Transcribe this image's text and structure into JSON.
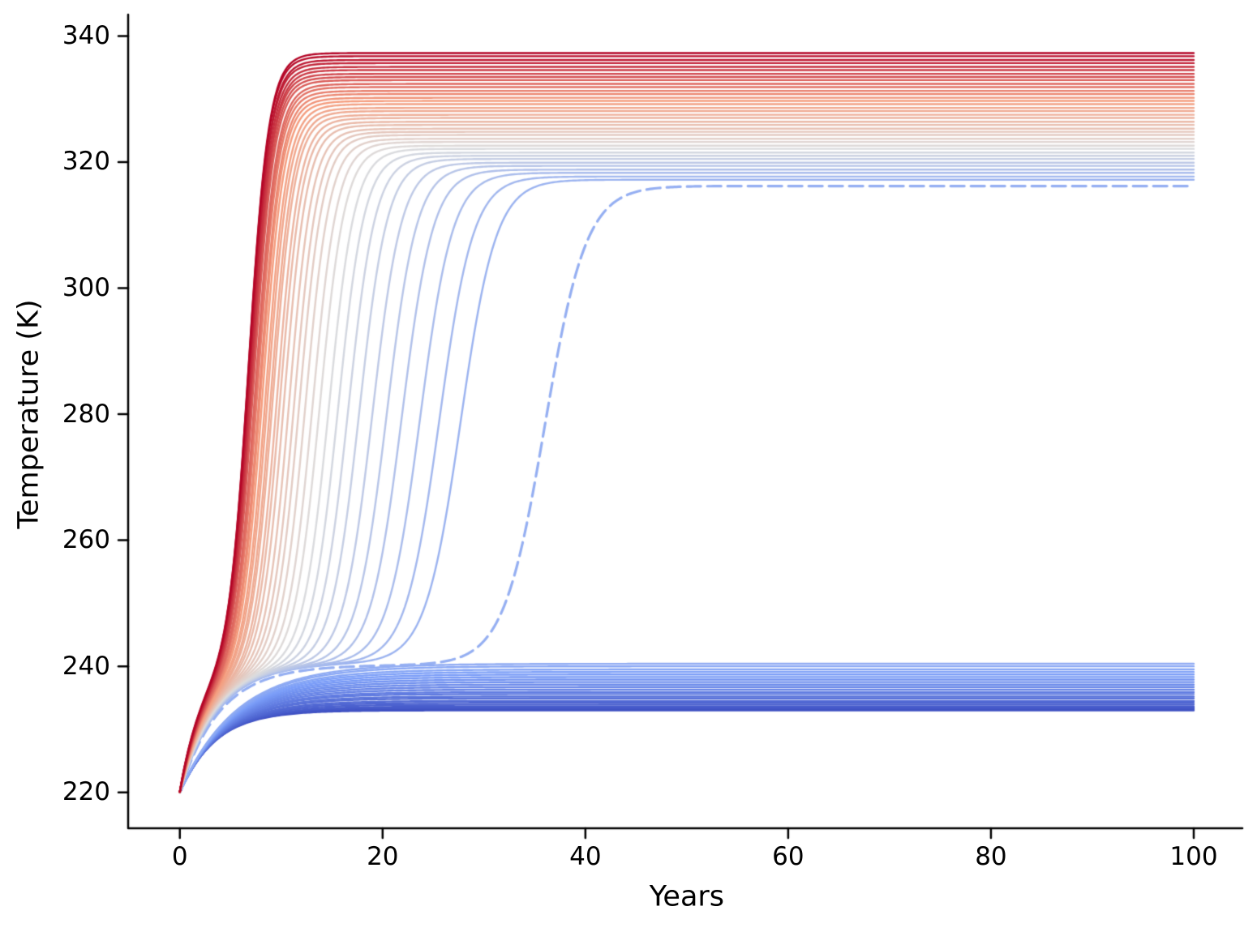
{
  "chart_data": {
    "type": "line",
    "title": "",
    "xlabel": "Years",
    "ylabel": "Temperature (K)",
    "xlim": [
      -5.1,
      104.8
    ],
    "ylim": [
      214.3,
      343.4
    ],
    "x_ticks": [
      0,
      20,
      40,
      60,
      80,
      100
    ],
    "y_ticks": [
      220,
      240,
      260,
      280,
      300,
      320,
      340
    ],
    "grid": false,
    "legend": false,
    "background_color": "#ffffff",
    "axis_color": "#000000",
    "initial_state": {
      "year": 0,
      "temperature_K": 220
    },
    "time_span_years": [
      0,
      100
    ],
    "n_trajectories": 61,
    "colormap": {
      "name": "coolwarm",
      "stops": [
        [
          0.0,
          "#3b4cc0"
        ],
        [
          0.25,
          "#7c9ff9"
        ],
        [
          0.5,
          "#dddddd"
        ],
        [
          0.75,
          "#f59c7d"
        ],
        [
          1.0,
          "#b40426"
        ]
      ]
    },
    "branches": {
      "cold": {
        "description": "trajectories relaxing to the cold equilibrium band",
        "final_temps_K": [
          233.0,
          233.2,
          233.4,
          233.6,
          233.9,
          234.2,
          234.5,
          234.9,
          235.2,
          235.6,
          235.9,
          236.3,
          236.7,
          237.1,
          237.5,
          237.9,
          238.3,
          238.7,
          239.1,
          239.5,
          240.0,
          240.4
        ],
        "color_t_range": [
          0.01,
          0.3
        ],
        "tau_years_range": [
          3.5,
          5.5
        ],
        "line_style": "solid"
      },
      "warm": {
        "description": "trajectories escaping to the warm equilibrium, ordered hottest to coolest",
        "final_temps_K": [
          337.3,
          336.8,
          336.2,
          335.7,
          335.1,
          334.6,
          334.0,
          333.5,
          333.0,
          332.4,
          331.9,
          331.3,
          330.8,
          330.2,
          329.7,
          329.2,
          328.6,
          328.1,
          327.5,
          327.0,
          326.4,
          325.9,
          325.3,
          324.8,
          324.3,
          323.7,
          323.2,
          322.6,
          322.1,
          321.5,
          321.0,
          320.5,
          319.9,
          319.4,
          318.8,
          318.3,
          317.7,
          317.2
        ],
        "jump_years": [
          6.8,
          6.8,
          6.9,
          6.9,
          7.0,
          7.1,
          7.1,
          7.2,
          7.3,
          7.5,
          7.6,
          7.7,
          7.9,
          8.0,
          8.2,
          8.5,
          8.7,
          9.0,
          9.2,
          9.6,
          9.9,
          10.3,
          10.8,
          11.3,
          11.8,
          12.4,
          13.1,
          13.8,
          14.7,
          15.6,
          16.6,
          17.7,
          19.0,
          20.4,
          21.9,
          23.7,
          25.6,
          27.7
        ],
        "ghost_temp_K": 240.6,
        "color_t_range": [
          1.0,
          0.33
        ],
        "tau_years_range": [
          2.2,
          3.8
        ],
        "line_style": "solid"
      },
      "critical_dashed": {
        "description": "near-critical dashed trajectory lingering at the cold state before escaping",
        "final_temp_K": 316.2,
        "jump_year": 36.0,
        "ghost_temp_K": 240.2,
        "color_t": 0.315,
        "tau_years": 3.9,
        "line_style": "dashed"
      }
    }
  }
}
